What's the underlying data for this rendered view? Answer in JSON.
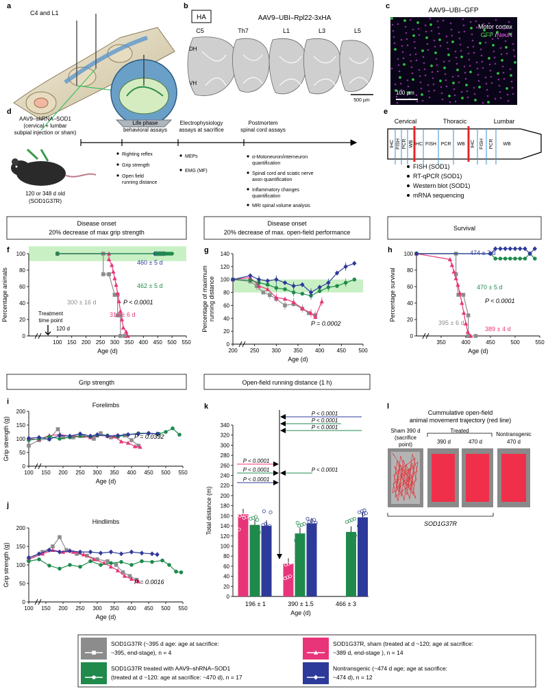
{
  "colors": {
    "sham": "#e8357a",
    "end_stage": "#8c8c8c",
    "treated": "#1f8a4c",
    "nontransgenic": "#2e3a9a",
    "onset_band": "#c8f0c4",
    "micro_bg": "#08021a",
    "tissue": "#c9c9c9"
  },
  "panel_a": {
    "letter": "a",
    "label": "C4 and L1"
  },
  "panel_b": {
    "letter": "b",
    "tag": "HA",
    "title": "AAV9–UBI–Rpl22-3xHA",
    "levels": [
      "C5",
      "Th7",
      "L1",
      "L3",
      "L5"
    ],
    "dh": "DH",
    "vh": "VH",
    "scale": "500 µm"
  },
  "panel_c": {
    "letter": "c",
    "title": "AAV9–UBI–GFP",
    "region": "Motor cortex",
    "stain_gfp": "GFP",
    "stain_sep": " /",
    "stain_neun": "NeuN",
    "scale": "100 µm"
  },
  "panel_d": {
    "letter": "d",
    "injection": [
      "AAV9–shRNA–SOD1",
      "(cervical + lumbar",
      "subpial injection or sham)"
    ],
    "age": "120 or 348 d old",
    "strain": "(SOD1G37R)",
    "headers": [
      [
        "Life phase",
        "behavioral assays"
      ],
      [
        "Electrophysiology",
        "assays at sacrifice"
      ],
      [
        "Postmortem",
        "spinal cord assays"
      ]
    ],
    "life_items": [
      "Righting reflex",
      "Grip strength",
      "Open field",
      "running distance"
    ],
    "ephys_items": [
      "MEPs",
      "EMG (MF)"
    ],
    "post_items": [
      "α-Motoneuron/interneuron",
      "quantification",
      "Spinal cord and sciatic nerve",
      "axon quantification",
      "Inflammatory changes",
      "quantification",
      "MRI spinal volume analysis"
    ]
  },
  "panel_e": {
    "letter": "e",
    "regions": [
      "Cervical",
      "Thoracic",
      "Lumbar"
    ],
    "segments_cervical": [
      "IHC",
      "FISH",
      "PCR",
      "WB"
    ],
    "segments_thoracic": [
      "IHC",
      "FISH",
      "PCR",
      "WB"
    ],
    "segments_lumbar": [
      "IHC",
      "FISH",
      "PCR",
      "WB"
    ],
    "assays": [
      "FISH (SOD1)",
      "RT-qPCR (SOD1)",
      "Western blot (SOD1)",
      "mRNA sequencing"
    ]
  },
  "onset_boxes": {
    "grip": [
      "Disease onset",
      "20% decrease of max grip strength"
    ],
    "openfield": [
      "Disease onset",
      "20% decrease of max. open-field performance"
    ],
    "survival": [
      "Survival"
    ]
  },
  "panel_f": {
    "letter": "f",
    "ylabel": "Percentage animals",
    "xlabel": "Age (d)",
    "p": "P < 0.0001",
    "endstage": "300 ± 16 d",
    "sham": "312 ± 6 d",
    "nontg": "460 ± 5 d",
    "treated": "462 ± 5 d",
    "treat_lines": [
      "Treatment",
      "time point",
      "120 d"
    ]
  },
  "panel_g": {
    "letter": "g",
    "ylabel": [
      "Percentage of maximum",
      "running distance"
    ],
    "xlabel": "Age (d)",
    "p": "P = 0.0002"
  },
  "panel_h": {
    "letter": "h",
    "ylabel": "Percentage survival",
    "xlabel": "Age (d)",
    "p": "P < 0.0001",
    "endstage": "395 ± 6 d",
    "sham": "389 ± 4 d",
    "nontg": "474 ± 7 d",
    "treated": "470 ± 5 d"
  },
  "section_labels": {
    "grip": "Grip strength",
    "openfield": "Open-field running distance (1 h)"
  },
  "panel_i": {
    "letter": "i",
    "title": "Forelimbs",
    "ylabel": "Grip strength (g)",
    "xlabel": "Age (d)",
    "p": "P = 0.0392"
  },
  "panel_j": {
    "letter": "j",
    "title": "Hindlimbs",
    "ylabel": "Grip strength (g)",
    "xlabel": "Age (d)",
    "p": "P = 0.0016"
  },
  "panel_k": {
    "letter": "k",
    "ylabel": "Total distance (m)",
    "groups": [
      "196 ± 1",
      "390 ± 1.5",
      "466 ± 3"
    ],
    "xlabel": "Age (d)",
    "p_top": [
      "P < 0.0001",
      "P < 0.0001",
      "P < 0.0001"
    ],
    "p_left": [
      "P < 0.0001",
      "P < 0.0001",
      "P < 0.0001"
    ],
    "p_mid": "P < 0.0001"
  },
  "panel_l": {
    "letter": "l",
    "title": [
      "Cummulative open-field",
      "animal movement trajectory (red line)"
    ],
    "sham": [
      "Sham 390 d",
      "(sacrifice",
      "point)"
    ],
    "treated": "Treated",
    "t390": "390 d",
    "t470": "470 d",
    "nontg": [
      "Nontransgenic",
      "470 d"
    ],
    "strain": "SOD1G37R"
  },
  "legend": [
    {
      "key": "end_stage",
      "lines": [
        "SOD1G37R (~395 d age: age at sacrifice:",
        "~395, end-stage), n = 4"
      ]
    },
    {
      "key": "sham",
      "lines": [
        "SOD1G37R, sham (treated at d ~120; age at sacrifice:",
        "~389 d, end-stage ), n = 14"
      ]
    },
    {
      "key": "treated",
      "lines": [
        "SOD1G37R treated with AAV9–shRNA–SOD1",
        "(treated at d ~120: age at sacrifice: ~470 d), n = 17"
      ]
    },
    {
      "key": "nontransgenic",
      "lines": [
        "Nontransgenic (~474 d age; age at sacrifice:",
        "~474 d), n = 12"
      ]
    }
  ],
  "chart_data": [
    {
      "panel": "f",
      "type": "line",
      "title": "",
      "xlabel": "Age (d)",
      "ylabel": "Percentage animals",
      "xlim": [
        0,
        550
      ],
      "ylim": [
        0,
        100
      ],
      "xticks": [
        100,
        150,
        200,
        250,
        300,
        350,
        400,
        450,
        500,
        550
      ],
      "yticks": [
        0,
        20,
        40,
        60,
        80,
        100
      ],
      "series": [
        {
          "name": "end_stage",
          "x": [
            100,
            260,
            260,
            280,
            280,
            300,
            300,
            310,
            310,
            320,
            320,
            335,
            335
          ],
          "y": [
            100,
            100,
            75,
            75,
            75,
            50,
            50,
            50,
            25,
            25,
            0,
            0,
            0
          ]
        },
        {
          "name": "sham",
          "x": [
            100,
            280,
            280,
            290,
            295,
            300,
            305,
            310,
            315,
            320,
            325,
            330,
            340,
            345
          ],
          "y": [
            100,
            100,
            93,
            86,
            78,
            70,
            62,
            52,
            42,
            30,
            20,
            10,
            5,
            0
          ]
        },
        {
          "name": "nontransgenic",
          "x": [
            100,
            440,
            445,
            450,
            455,
            460,
            465,
            470,
            475
          ],
          "y": [
            100,
            100,
            100,
            100,
            100,
            100,
            100,
            100,
            100
          ]
        },
        {
          "name": "treated",
          "x": [
            100,
            445,
            450,
            455,
            460,
            465,
            470,
            475,
            480,
            485,
            490,
            495,
            500
          ],
          "y": [
            100,
            100,
            100,
            100,
            100,
            100,
            100,
            100,
            100,
            100,
            100,
            100,
            100
          ]
        }
      ]
    },
    {
      "panel": "g",
      "type": "line",
      "title": "",
      "xlabel": "Age (d)",
      "ylabel": "Percentage of maximum running distance",
      "xlim": [
        200,
        500
      ],
      "ylim": [
        0,
        140
      ],
      "xticks": [
        200,
        250,
        300,
        350,
        400,
        450,
        500
      ],
      "yticks": [
        0,
        20,
        40,
        60,
        80,
        100,
        120,
        140
      ],
      "series": [
        {
          "name": "end_stage",
          "x": [
            200,
            240,
            255,
            270,
            285,
            300,
            320,
            340,
            360,
            375,
            390
          ],
          "y": [
            100,
            97,
            90,
            80,
            76,
            70,
            60,
            62,
            55,
            48,
            45
          ]
        },
        {
          "name": "sham",
          "x": [
            200,
            240,
            260,
            280,
            300,
            320,
            340,
            360,
            380,
            390,
            405
          ],
          "y": [
            100,
            103,
            90,
            85,
            72,
            70,
            65,
            55,
            48,
            42,
            66
          ]
        },
        {
          "name": "treated",
          "x": [
            200,
            240,
            260,
            280,
            300,
            320,
            340,
            360,
            380,
            400,
            420,
            440,
            460,
            480
          ],
          "y": [
            100,
            99,
            95,
            92,
            87,
            85,
            80,
            78,
            75,
            82,
            88,
            90,
            95,
            100
          ]
        },
        {
          "name": "nontransgenic",
          "x": [
            200,
            240,
            260,
            280,
            300,
            320,
            340,
            360,
            380,
            400,
            420,
            440,
            460,
            480
          ],
          "y": [
            100,
            106,
            100,
            98,
            100,
            95,
            90,
            92,
            80,
            88,
            95,
            110,
            120,
            125
          ]
        }
      ]
    },
    {
      "panel": "h",
      "type": "line",
      "title": "",
      "xlabel": "Age (d)",
      "ylabel": "Percentage survival",
      "xlim": [
        300,
        550
      ],
      "ylim": [
        0,
        100
      ],
      "xticks": [
        350,
        400,
        450,
        500,
        550
      ],
      "yticks": [
        0,
        20,
        40,
        60,
        80,
        100
      ],
      "series": [
        {
          "name": "end_stage",
          "x": [
            300,
            380,
            380,
            385,
            395,
            405,
            405,
            420
          ],
          "y": [
            100,
            100,
            75,
            50,
            50,
            25,
            0,
            0
          ]
        },
        {
          "name": "sham",
          "x": [
            300,
            368,
            372,
            376,
            380,
            384,
            388,
            392,
            396,
            400,
            404,
            410
          ],
          "y": [
            100,
            93,
            86,
            78,
            70,
            62,
            52,
            40,
            28,
            15,
            5,
            0
          ]
        },
        {
          "name": "treated",
          "x": [
            300,
            450,
            460,
            470,
            480,
            490,
            500,
            510,
            520,
            530,
            540
          ],
          "y": [
            100,
            100,
            94,
            94,
            94,
            94,
            94,
            94,
            94,
            100,
            94
          ]
        },
        {
          "name": "nontransgenic",
          "x": [
            300,
            450,
            460,
            470,
            480,
            490,
            500,
            510,
            520,
            530,
            540
          ],
          "y": [
            100,
            100,
            106,
            106,
            106,
            106,
            106,
            106,
            106,
            100,
            106
          ]
        }
      ]
    },
    {
      "panel": "i",
      "type": "line",
      "title": "Forelimbs",
      "xlabel": "Age (d)",
      "ylabel": "Grip strength (g)",
      "xlim": [
        100,
        550
      ],
      "ylim": [
        0,
        200
      ],
      "xticks": [
        100,
        150,
        200,
        250,
        300,
        350,
        400,
        450,
        500,
        550
      ],
      "yticks": [
        0,
        50,
        100,
        150,
        200
      ],
      "series": [
        {
          "name": "end_stage",
          "x": [
            100,
            130,
            160,
            185,
            200,
            230,
            260,
            290,
            310,
            340,
            360,
            380,
            400,
            420
          ],
          "y": [
            75,
            95,
            100,
            135,
            105,
            105,
            110,
            100,
            120,
            105,
            108,
            112,
            95,
            75
          ]
        },
        {
          "name": "sham",
          "x": [
            100,
            130,
            160,
            190,
            220,
            250,
            280,
            300,
            330,
            350,
            370,
            390,
            410,
            425
          ],
          "y": [
            100,
            98,
            112,
            115,
            110,
            110,
            105,
            112,
            110,
            108,
            90,
            85,
            72,
            70
          ]
        },
        {
          "name": "treated",
          "x": [
            100,
            130,
            160,
            190,
            220,
            250,
            280,
            300,
            330,
            360,
            390,
            420,
            450,
            480,
            500,
            520,
            540
          ],
          "y": [
            95,
            100,
            108,
            100,
            105,
            110,
            108,
            112,
            112,
            108,
            115,
            120,
            120,
            118,
            125,
            138,
            115
          ]
        },
        {
          "name": "nontransgenic",
          "x": [
            100,
            130,
            160,
            190,
            220,
            250,
            280,
            300,
            330,
            360,
            390,
            420,
            450,
            475
          ],
          "y": [
            102,
            105,
            98,
            112,
            110,
            118,
            110,
            115,
            110,
            112,
            115,
            118,
            120,
            118
          ]
        }
      ]
    },
    {
      "panel": "j",
      "type": "line",
      "title": "Hindlimbs",
      "xlabel": "Age (d)",
      "ylabel": "Grip strength (g)",
      "xlim": [
        100,
        550
      ],
      "ylim": [
        0,
        200
      ],
      "xticks": [
        100,
        150,
        200,
        250,
        300,
        350,
        400,
        450,
        500,
        550
      ],
      "yticks": [
        0,
        50,
        100,
        150,
        200
      ],
      "series": [
        {
          "name": "end_stage",
          "x": [
            100,
            140,
            170,
            190,
            210,
            240,
            270,
            300,
            330,
            355,
            375,
            395,
            415
          ],
          "y": [
            115,
            135,
            150,
            175,
            140,
            130,
            125,
            115,
            110,
            100,
            80,
            70,
            60
          ]
        },
        {
          "name": "sham",
          "x": [
            100,
            140,
            170,
            200,
            230,
            260,
            290,
            320,
            340,
            360,
            380,
            400,
            420
          ],
          "y": [
            115,
            130,
            140,
            135,
            135,
            128,
            115,
            105,
            95,
            85,
            70,
            62,
            55
          ]
        },
        {
          "name": "treated",
          "x": [
            100,
            130,
            160,
            190,
            220,
            250,
            280,
            310,
            340,
            370,
            400,
            430,
            460,
            490,
            510,
            530,
            545
          ],
          "y": [
            110,
            115,
            98,
            90,
            100,
            95,
            110,
            100,
            105,
            108,
            100,
            110,
            108,
            112,
            100,
            82,
            80
          ]
        },
        {
          "name": "nontransgenic",
          "x": [
            100,
            130,
            160,
            190,
            220,
            250,
            280,
            310,
            340,
            370,
            400,
            430,
            460,
            475
          ],
          "y": [
            120,
            130,
            140,
            135,
            138,
            135,
            135,
            132,
            135,
            130,
            135,
            132,
            130,
            128
          ]
        }
      ]
    },
    {
      "panel": "k",
      "type": "bar",
      "title": "",
      "xlabel": "Age (d)",
      "ylabel": "Total distance (m)",
      "categories": [
        "196 ± 1",
        "390 ± 1.5",
        "466 ± 3"
      ],
      "ylim": [
        0,
        340
      ],
      "yticks": [
        0,
        20,
        40,
        60,
        80,
        100,
        120,
        140,
        160,
        180,
        200,
        220,
        240,
        260,
        280,
        300,
        320,
        340
      ],
      "series": [
        {
          "name": "sham",
          "values": [
            163,
            65,
            null
          ]
        },
        {
          "name": "treated",
          "values": [
            142,
            125,
            128
          ]
        },
        {
          "name": "nontransgenic",
          "values": [
            140,
            145,
            157
          ]
        }
      ]
    }
  ]
}
